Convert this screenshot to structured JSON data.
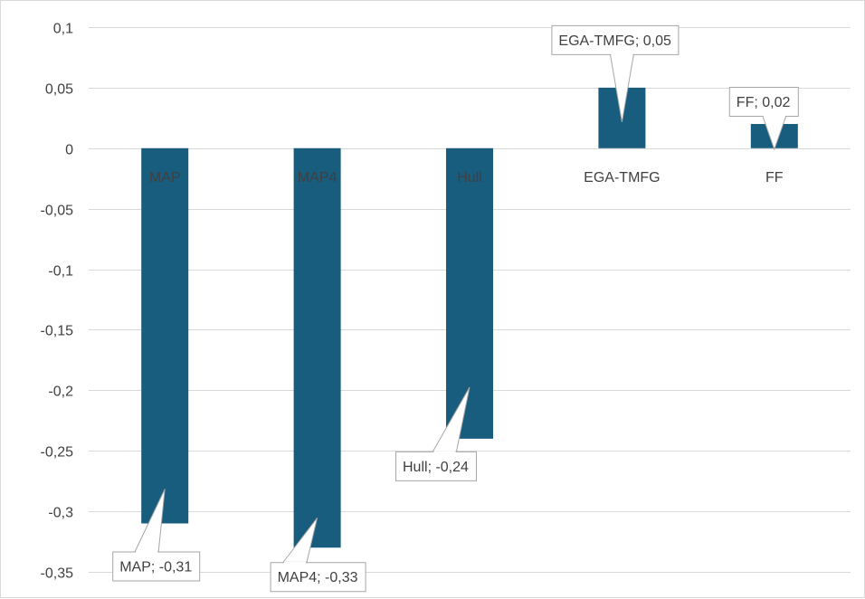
{
  "chart_data": {
    "type": "bar",
    "title": "",
    "xlabel": "",
    "ylabel": "",
    "categories": [
      "MAP",
      "MAP4",
      "Hull",
      "EGA-TMFG",
      "FF"
    ],
    "values": [
      -0.31,
      -0.33,
      -0.24,
      0.05,
      0.02
    ],
    "data_labels": [
      "MAP; -0,31",
      "MAP4; -0,33",
      "Hull; -0,24",
      "EGA-TMFG; 0,05",
      "FF; 0,02"
    ],
    "ylim": [
      -0.35,
      0.1
    ],
    "y_ticks": [
      0.1,
      0.05,
      0,
      -0.05,
      -0.1,
      -0.15,
      -0.2,
      -0.25,
      -0.3,
      -0.35
    ],
    "y_tick_labels": [
      "0,1",
      "0,05",
      "0",
      "-0,05",
      "-0,1",
      "-0,15",
      "-0,2",
      "-0,25",
      "-0,3",
      "-0,35"
    ],
    "grid": true,
    "legend": "none",
    "colors": {
      "bar": "#185c7e",
      "grid": "#d9d9d9",
      "text": "#404040",
      "callout_border": "#a6a6a6"
    }
  }
}
